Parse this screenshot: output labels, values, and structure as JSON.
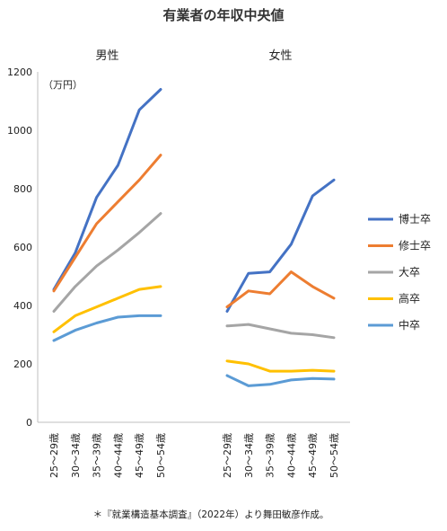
{
  "chart_data": {
    "type": "line",
    "title": "有業者の年収中央値",
    "ylabel": "（万円）",
    "ylim": [
      0,
      1200
    ],
    "yticks": [
      0,
      200,
      400,
      600,
      800,
      1000,
      1200
    ],
    "grid": false,
    "legend_position": "right",
    "categories": [
      "25～29歳",
      "30～34歳",
      "35～39歳",
      "40～44歳",
      "45～49歳",
      "50～54歳"
    ],
    "panels": [
      {
        "title": "男性",
        "series": [
          {
            "name": "博士卒",
            "color": "#4472C4",
            "values": [
              455,
              580,
              770,
              880,
              1070,
              1140
            ]
          },
          {
            "name": "修士卒",
            "color": "#ED7D31",
            "values": [
              450,
              565,
              680,
              755,
              830,
              915
            ]
          },
          {
            "name": "大卒",
            "color": "#A5A5A5",
            "values": [
              380,
              465,
              535,
              590,
              650,
              715
            ]
          },
          {
            "name": "高卒",
            "color": "#FFC000",
            "values": [
              310,
              365,
              395,
              425,
              455,
              465
            ]
          },
          {
            "name": "中卒",
            "color": "#5B9BD5",
            "values": [
              280,
              315,
              340,
              360,
              365,
              365
            ]
          }
        ]
      },
      {
        "title": "女性",
        "series": [
          {
            "name": "博士卒",
            "color": "#4472C4",
            "values": [
              380,
              510,
              515,
              610,
              775,
              830
            ]
          },
          {
            "name": "修士卒",
            "color": "#ED7D31",
            "values": [
              395,
              450,
              440,
              515,
              465,
              425
            ]
          },
          {
            "name": "大卒",
            "color": "#A5A5A5",
            "values": [
              330,
              335,
              320,
              305,
              300,
              290
            ]
          },
          {
            "name": "高卒",
            "color": "#FFC000",
            "values": [
              210,
              200,
              175,
              175,
              178,
              175
            ]
          },
          {
            "name": "中卒",
            "color": "#5B9BD5",
            "values": [
              160,
              125,
              130,
              145,
              150,
              148
            ]
          }
        ]
      }
    ],
    "legend": [
      "博士卒",
      "修士卒",
      "大卒",
      "高卒",
      "中卒"
    ],
    "source_note": "＊『就業構造基本調査』（2022年）より舞田敏彦作成。"
  }
}
